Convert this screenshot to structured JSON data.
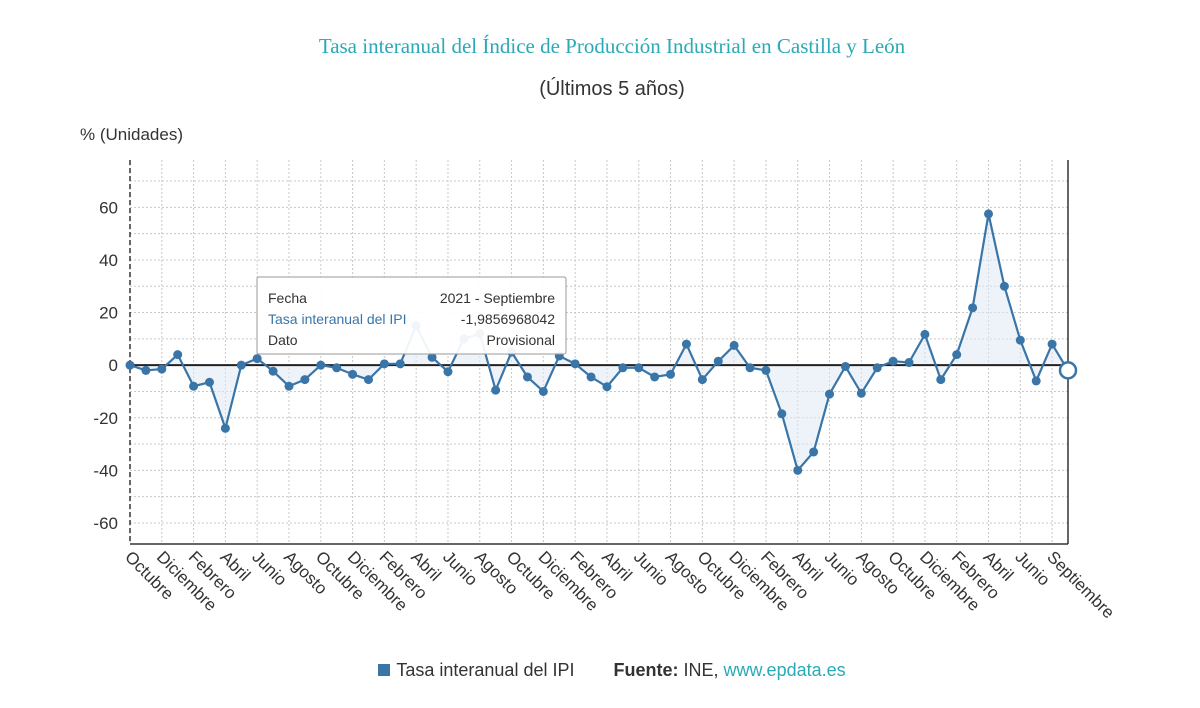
{
  "chart_data": {
    "type": "line",
    "title": "Tasa interanual del Índice de Producción Industrial en Castilla y León",
    "subtitle": "(Últimos 5 años)",
    "ylabel": "% (Unidades)",
    "ylim": [
      -68,
      78
    ],
    "yticks": [
      -60,
      -40,
      -20,
      0,
      20,
      40,
      60
    ],
    "x_tick_labels": [
      "Octubre",
      "Diciembre",
      "Febrero",
      "Abril",
      "Junio",
      "Agosto",
      "Octubre",
      "Diciembre",
      "Febrero",
      "Abril",
      "Junio",
      "Agosto",
      "Octubre",
      "Diciembre",
      "Febrero",
      "Abril",
      "Junio",
      "Agosto",
      "Octubre",
      "Diciembre",
      "Febrero",
      "Abril",
      "Junio",
      "Agosto",
      "Octubre",
      "Diciembre",
      "Febrero",
      "Abril",
      "Junio",
      "Septiembre"
    ],
    "grid": true,
    "series": [
      {
        "name": "Tasa interanual del IPI",
        "color": "#3a75a8",
        "values": [
          0,
          -2,
          -1.5,
          4,
          -8,
          -6.5,
          -24,
          0,
          2.5,
          -2.3,
          -8,
          -5.5,
          0,
          -1,
          -3.5,
          -5.5,
          0.5,
          0.5,
          15,
          3,
          -2.5,
          10,
          12,
          -9.5,
          5,
          -4.5,
          -10,
          3.5,
          0.5,
          -4.5,
          -8.2,
          -1,
          -1,
          -4.5,
          -3.5,
          8,
          -5.5,
          1.5,
          7.5,
          -1,
          -2,
          -18.5,
          -40,
          -33,
          -11,
          -0.5,
          -10.7,
          -1,
          1.5,
          1,
          11.7,
          -5.5,
          4,
          21.8,
          57.5,
          30,
          9.5,
          -6,
          8,
          -1.99
        ]
      }
    ],
    "tooltip": {
      "rows": [
        {
          "label": "Fecha",
          "value": "2021 - Septiembre"
        },
        {
          "label": "Tasa interanual del IPI",
          "value": "-1,9856968042"
        },
        {
          "label": "Dato",
          "value": "Provisional"
        }
      ]
    },
    "legend": {
      "item": "Tasa interanual del IPI",
      "source_label": "Fuente:",
      "source_name": "INE,",
      "source_url": "www.epdata.es"
    },
    "colors": {
      "title": "#2aa9b6",
      "line": "#3a75a8",
      "fill": "#dfe9f3",
      "link": "#2aa9b6"
    }
  }
}
